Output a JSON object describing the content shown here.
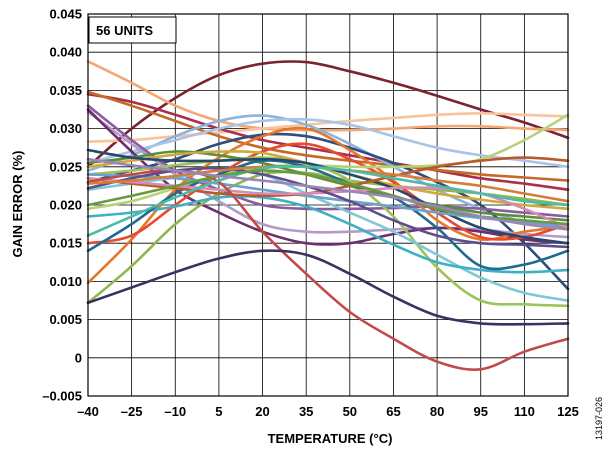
{
  "chart_data": {
    "type": "line",
    "annotation": "56 UNITS",
    "xlabel": "TEMPERATURE (°C)",
    "ylabel": "GAIN ERROR (%)",
    "figure_id": "13197-026",
    "x_ticks": [
      -40,
      -25,
      -10,
      5,
      20,
      35,
      50,
      65,
      80,
      95,
      110,
      125
    ],
    "x_tick_labels": [
      "–40",
      "–25",
      "–10",
      "5",
      "20",
      "35",
      "50",
      "65",
      "80",
      "95",
      "110",
      "125"
    ],
    "y_ticks": [
      -0.005,
      0,
      0.005,
      0.01,
      0.015,
      0.02,
      0.025,
      0.03,
      0.035,
      0.04,
      0.045
    ],
    "y_tick_labels": [
      "–0.005",
      "0",
      "0.005",
      "0.010",
      "0.015",
      "0.020",
      "0.025",
      "0.030",
      "0.035",
      "0.040",
      "0.045"
    ],
    "xlim": [
      -40,
      125
    ],
    "ylim": [
      -0.005,
      0.045
    ],
    "grid": true,
    "x": [
      -40,
      -25,
      -10,
      5,
      20,
      35,
      50,
      65,
      80,
      95,
      110,
      125
    ],
    "series": [
      {
        "color": "#7a2230",
        "values": [
          0.025,
          0.03,
          0.034,
          0.037,
          0.0385,
          0.0387,
          0.0375,
          0.036,
          0.0343,
          0.0325,
          0.0308,
          0.0288
        ]
      },
      {
        "color": "#f4a674",
        "values": [
          0.0388,
          0.036,
          0.033,
          0.031,
          0.03,
          0.0298,
          0.0298,
          0.03,
          0.0303,
          0.0303,
          0.03,
          0.0298
        ]
      },
      {
        "color": "#fac49a",
        "values": [
          0.0283,
          0.0285,
          0.029,
          0.0295,
          0.03,
          0.0305,
          0.031,
          0.0314,
          0.0318,
          0.032,
          0.0318,
          0.0316
        ]
      },
      {
        "color": "#a9304a",
        "values": [
          0.0345,
          0.0335,
          0.0318,
          0.03,
          0.0285,
          0.0275,
          0.0265,
          0.0255,
          0.0245,
          0.0235,
          0.0228,
          0.022
        ]
      },
      {
        "color": "#c46a28",
        "values": [
          0.0348,
          0.033,
          0.031,
          0.029,
          0.0275,
          0.0265,
          0.0258,
          0.0252,
          0.0246,
          0.024,
          0.0236,
          0.0232
        ]
      },
      {
        "color": "#8cb4dc",
        "values": [
          0.0245,
          0.0265,
          0.029,
          0.031,
          0.0317,
          0.0305,
          0.028,
          0.025,
          0.022,
          0.0195,
          0.0178,
          0.0168
        ]
      },
      {
        "color": "#a9c4e6",
        "values": [
          0.0255,
          0.027,
          0.0285,
          0.03,
          0.031,
          0.0312,
          0.0305,
          0.029,
          0.0275,
          0.0265,
          0.0258,
          0.025
        ]
      },
      {
        "color": "#2f4d7e",
        "values": [
          0.023,
          0.0245,
          0.026,
          0.028,
          0.0292,
          0.029,
          0.0275,
          0.0255,
          0.023,
          0.02,
          0.015,
          0.009
        ]
      },
      {
        "color": "#8b5ba0",
        "values": [
          0.033,
          0.0285,
          0.0245,
          0.022,
          0.02,
          0.0195,
          0.0195,
          0.0196,
          0.0198,
          0.0195,
          0.019,
          0.0185
        ]
      },
      {
        "color": "#b39ac8",
        "values": [
          0.0322,
          0.028,
          0.024,
          0.0205,
          0.0175,
          0.0165,
          0.0165,
          0.0168,
          0.017,
          0.0168,
          0.0162,
          0.0158
        ]
      },
      {
        "color": "#6d2e6e",
        "values": [
          0.0325,
          0.027,
          0.022,
          0.019,
          0.0165,
          0.015,
          0.015,
          0.0162,
          0.017,
          0.0165,
          0.0155,
          0.015
        ]
      },
      {
        "color": "#e6762a",
        "values": [
          0.0098,
          0.0155,
          0.022,
          0.0262,
          0.029,
          0.03,
          0.0272,
          0.0232,
          0.018,
          0.0155,
          0.0165,
          0.0172
        ]
      },
      {
        "color": "#e84a2e",
        "values": [
          0.015,
          0.016,
          0.02,
          0.024,
          0.027,
          0.028,
          0.026,
          0.023,
          0.019,
          0.0158,
          0.0158,
          0.0175
        ]
      },
      {
        "color": "#8cb84e",
        "values": [
          0.0072,
          0.012,
          0.0175,
          0.0215,
          0.024,
          0.0242,
          0.0232,
          0.0225,
          0.022,
          0.0215,
          0.0208,
          0.02
        ]
      },
      {
        "color": "#b6d37a",
        "values": [
          0.0195,
          0.0205,
          0.0222,
          0.0238,
          0.025,
          0.0252,
          0.025,
          0.025,
          0.0252,
          0.026,
          0.0285,
          0.0318
        ]
      },
      {
        "color": "#9dc45a",
        "values": [
          0.024,
          0.0245,
          0.0252,
          0.0258,
          0.0262,
          0.0255,
          0.0232,
          0.0185,
          0.0118,
          0.0075,
          0.007,
          0.0068
        ]
      },
      {
        "color": "#5a8f3a",
        "values": [
          0.0255,
          0.0262,
          0.027,
          0.0265,
          0.0255,
          0.024,
          0.0225,
          0.021,
          0.02,
          0.019,
          0.0185,
          0.018
        ]
      },
      {
        "color": "#cfa93a",
        "values": [
          0.025,
          0.0258,
          0.0266,
          0.027,
          0.0268,
          0.0255,
          0.024,
          0.0226,
          0.0215,
          0.0207,
          0.02,
          0.0195
        ]
      },
      {
        "color": "#7fc8d6",
        "values": [
          0.022,
          0.0228,
          0.0236,
          0.0245,
          0.024,
          0.0215,
          0.019,
          0.0165,
          0.0135,
          0.0105,
          0.0085,
          0.0075
        ]
      },
      {
        "color": "#3fb0c4",
        "values": [
          0.0185,
          0.019,
          0.0198,
          0.021,
          0.021,
          0.0198,
          0.0175,
          0.0148,
          0.0125,
          0.0115,
          0.0112,
          0.0115
        ]
      },
      {
        "color": "#1f6a8e",
        "values": [
          0.014,
          0.0175,
          0.0215,
          0.024,
          0.0258,
          0.025,
          0.0228,
          0.021,
          0.017,
          0.012,
          0.0122,
          0.014
        ]
      },
      {
        "color": "#27496e",
        "values": [
          0.0272,
          0.0262,
          0.0258,
          0.0258,
          0.026,
          0.0255,
          0.024,
          0.0222,
          0.0195,
          0.017,
          0.0158,
          0.015
        ]
      },
      {
        "color": "#6ea0cc",
        "values": [
          0.024,
          0.0238,
          0.0235,
          0.0228,
          0.022,
          0.0212,
          0.0205,
          0.0198,
          0.019,
          0.0183,
          0.0178,
          0.0172
        ]
      },
      {
        "color": "#b85a2a",
        "values": [
          0.0235,
          0.0228,
          0.0222,
          0.0215,
          0.0212,
          0.0215,
          0.0225,
          0.0238,
          0.025,
          0.0258,
          0.0262,
          0.0258
        ]
      },
      {
        "color": "#d68bb5",
        "values": [
          0.0235,
          0.023,
          0.0225,
          0.022,
          0.0215,
          0.0215,
          0.0218,
          0.0222,
          0.0222,
          0.0215,
          0.0195,
          0.017
        ]
      },
      {
        "color": "#c24a4a",
        "values": [
          0.023,
          0.024,
          0.0245,
          0.023,
          0.0165,
          0.011,
          0.006,
          0.0025,
          -0.0005,
          -0.0015,
          0.0008,
          0.0025
        ]
      },
      {
        "color": "#3e2f5e",
        "values": [
          0.0072,
          0.0092,
          0.0112,
          0.013,
          0.014,
          0.0135,
          0.011,
          0.008,
          0.0055,
          0.0045,
          0.0044,
          0.0045
        ]
      },
      {
        "color": "#5c4e8c",
        "values": [
          0.0222,
          0.0235,
          0.0245,
          0.0248,
          0.024,
          0.0225,
          0.0205,
          0.018,
          0.016,
          0.015,
          0.0148,
          0.0145
        ]
      },
      {
        "color": "#d57e3a",
        "values": [
          0.0228,
          0.0232,
          0.0238,
          0.0245,
          0.025,
          0.025,
          0.0245,
          0.024,
          0.0232,
          0.0225,
          0.0215,
          0.0205
        ]
      },
      {
        "color": "#4cbba8",
        "values": [
          0.016,
          0.0185,
          0.021,
          0.0232,
          0.0248,
          0.025,
          0.0245,
          0.0235,
          0.0225,
          0.0215,
          0.0205,
          0.02
        ]
      },
      {
        "color": "#6a9a40",
        "values": [
          0.02,
          0.0212,
          0.0225,
          0.0238,
          0.0245,
          0.024,
          0.0228,
          0.0212,
          0.0195,
          0.0185,
          0.018,
          0.0175
        ]
      },
      {
        "color": "#9a86b8",
        "values": [
          0.026,
          0.0252,
          0.0245,
          0.0238,
          0.0232,
          0.0225,
          0.0218,
          0.021,
          0.0198,
          0.0185,
          0.0175,
          0.0168
        ]
      }
    ]
  }
}
